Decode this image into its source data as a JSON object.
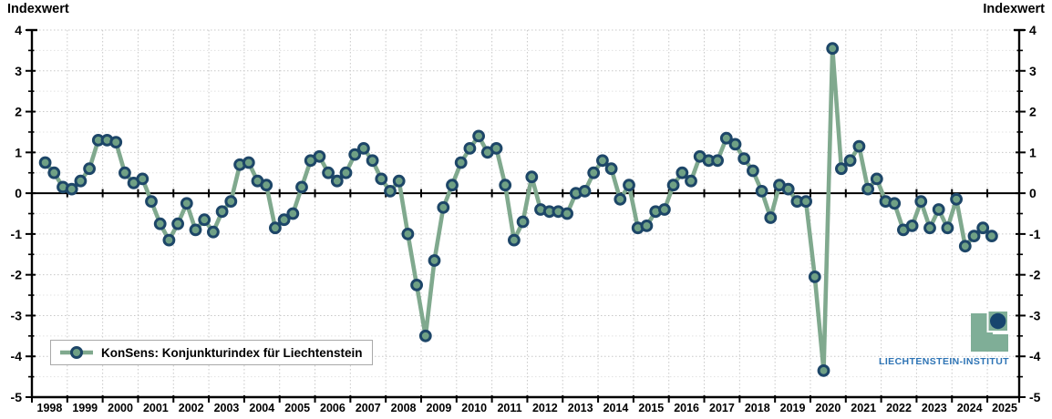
{
  "axis_titles": {
    "left": "Indexwert",
    "right": "Indexwert"
  },
  "legend": {
    "label": "KonSens: Konjunkturindex für Liechtenstein"
  },
  "logo": {
    "text": "LIECHTENSTEIN-INSTITUT"
  },
  "colors": {
    "line": "#80A98E",
    "marker_fill": "#6FA085",
    "marker_border": "#1D4668",
    "axis": "#000000",
    "grid_major": "#C8C8C8",
    "grid_minor": "#E1E1E1",
    "legend_border": "#A9A9A9",
    "logo_green": "#7FAE97",
    "logo_circle_blue": "#17456E",
    "logo_text_blue": "#2E74B5",
    "label_text": "#000000"
  },
  "chart_data": {
    "type": "line",
    "title": "",
    "xlabel": "",
    "ylabel": "Indexwert",
    "ylim": [
      -5,
      4
    ],
    "y_ticks": [
      4,
      3,
      2,
      1,
      0,
      -1,
      -2,
      -3,
      -4,
      -5
    ],
    "y_minor_step": 0.5,
    "grid": "dotted",
    "legend_position": "bottom-left",
    "x_axis_years": [
      1998,
      1999,
      2000,
      2001,
      2002,
      2003,
      2004,
      2005,
      2006,
      2007,
      2008,
      2009,
      2010,
      2011,
      2012,
      2013,
      2014,
      2015,
      2016,
      2017,
      2018,
      2019,
      2020,
      2021,
      2022,
      2023,
      2024,
      2025
    ],
    "frequency": "quarterly",
    "start_year": 1998,
    "start_quarter": 2,
    "series": [
      {
        "name": "KonSens: Konjunkturindex für Liechtenstein",
        "values": [
          0.75,
          0.5,
          0.15,
          0.1,
          0.3,
          0.6,
          1.3,
          1.3,
          1.25,
          0.5,
          0.25,
          0.35,
          -0.2,
          -0.75,
          -1.15,
          -0.75,
          -0.25,
          -0.9,
          -0.65,
          -0.95,
          -0.45,
          -0.2,
          0.7,
          0.75,
          0.3,
          0.2,
          -0.85,
          -0.65,
          -0.5,
          0.15,
          0.8,
          0.9,
          0.5,
          0.3,
          0.5,
          0.95,
          1.1,
          0.8,
          0.35,
          0.05,
          0.3,
          -1.0,
          -2.25,
          -3.5,
          -1.65,
          -0.35,
          0.2,
          0.75,
          1.1,
          1.4,
          1.0,
          1.1,
          0.2,
          -1.15,
          -0.7,
          0.4,
          -0.4,
          -0.45,
          -0.45,
          -0.5,
          0.0,
          0.05,
          0.5,
          0.8,
          0.6,
          -0.15,
          0.2,
          -0.85,
          -0.8,
          -0.45,
          -0.4,
          0.2,
          0.5,
          0.3,
          0.9,
          0.8,
          0.8,
          1.35,
          1.2,
          0.85,
          0.55,
          0.05,
          -0.6,
          0.2,
          0.1,
          -0.2,
          -0.2,
          -2.05,
          -4.35,
          3.55,
          0.6,
          0.8,
          1.15,
          0.1,
          0.35,
          -0.2,
          -0.25,
          -0.9,
          -0.8,
          -0.2,
          -0.85,
          -0.4,
          -0.85,
          -0.15,
          -1.3,
          -1.05,
          -0.85,
          -1.05
        ]
      }
    ]
  }
}
